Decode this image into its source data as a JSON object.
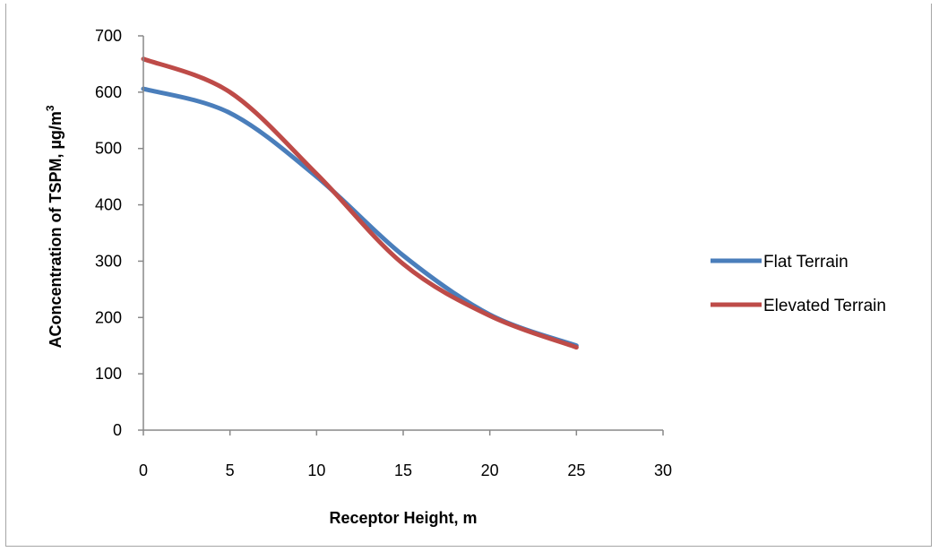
{
  "chart_data": {
    "type": "line",
    "title": "",
    "xlabel": "Receptor Height, m",
    "ylabel": "AConcentration of TSPM, µg/m",
    "ylabel_superscript": "3",
    "xlim": [
      0,
      30
    ],
    "ylim": [
      0,
      700
    ],
    "x_ticks": [
      "0",
      "5",
      "10",
      "15",
      "20",
      "25",
      "30"
    ],
    "y_ticks": [
      "0",
      "100",
      "200",
      "300",
      "400",
      "500",
      "600",
      "700"
    ],
    "grid": false,
    "legend_position": "right",
    "series": [
      {
        "name": "Flat Terrain",
        "color": "#4a7ebb",
        "x": [
          0,
          5,
          10,
          15,
          20,
          25
        ],
        "y": [
          606,
          563,
          450,
          310,
          205,
          150
        ]
      },
      {
        "name": "Elevated Terrain",
        "color": "#be4b48",
        "x": [
          0,
          5,
          10,
          15,
          20,
          25
        ],
        "y": [
          659,
          600,
          455,
          295,
          203,
          147
        ]
      }
    ]
  }
}
